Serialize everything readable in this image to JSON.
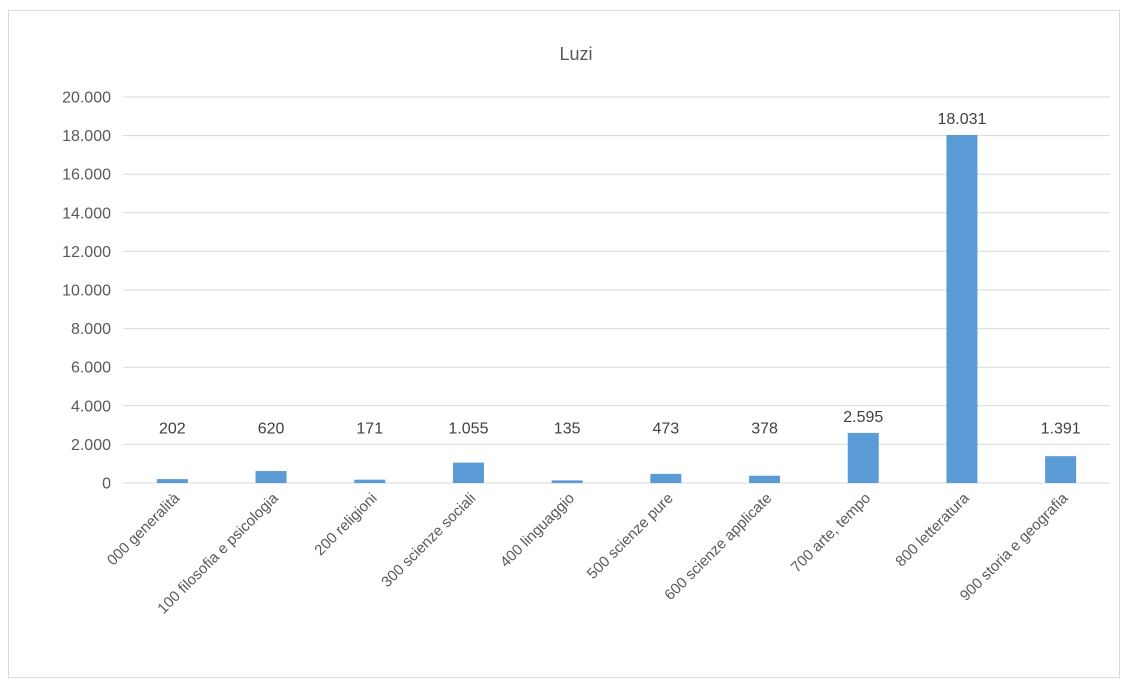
{
  "chart_data": {
    "type": "bar",
    "title": "Luzi",
    "xlabel": "",
    "ylabel": "",
    "categories": [
      "000 generalità",
      "100 filosofia e psicologia",
      "200 religioni",
      "300 scienze sociali",
      "400 linguaggio",
      "500 scienze pure",
      "600 scienze applicate",
      "700 arte, tempo",
      "800 letteratura",
      "900 storia e geografia"
    ],
    "values": [
      202,
      620,
      171,
      1055,
      135,
      473,
      378,
      2595,
      18031,
      1391
    ],
    "value_labels": [
      "202",
      "620",
      "171",
      "1.055",
      "135",
      "473",
      "378",
      "2.595",
      "18.031",
      "1.391"
    ],
    "ylim": [
      0,
      20000
    ],
    "yticks": [
      0,
      2000,
      4000,
      6000,
      8000,
      10000,
      12000,
      14000,
      16000,
      18000,
      20000
    ],
    "ytick_labels": [
      "0",
      "2.000",
      "4.000",
      "6.000",
      "8.000",
      "10.000",
      "12.000",
      "14.000",
      "16.000",
      "18.000",
      "20.000"
    ],
    "grid": true,
    "legend": "none",
    "colors": {
      "bar": "#5b9bd5",
      "grid": "#d9d9d9",
      "text": "#595959"
    }
  }
}
